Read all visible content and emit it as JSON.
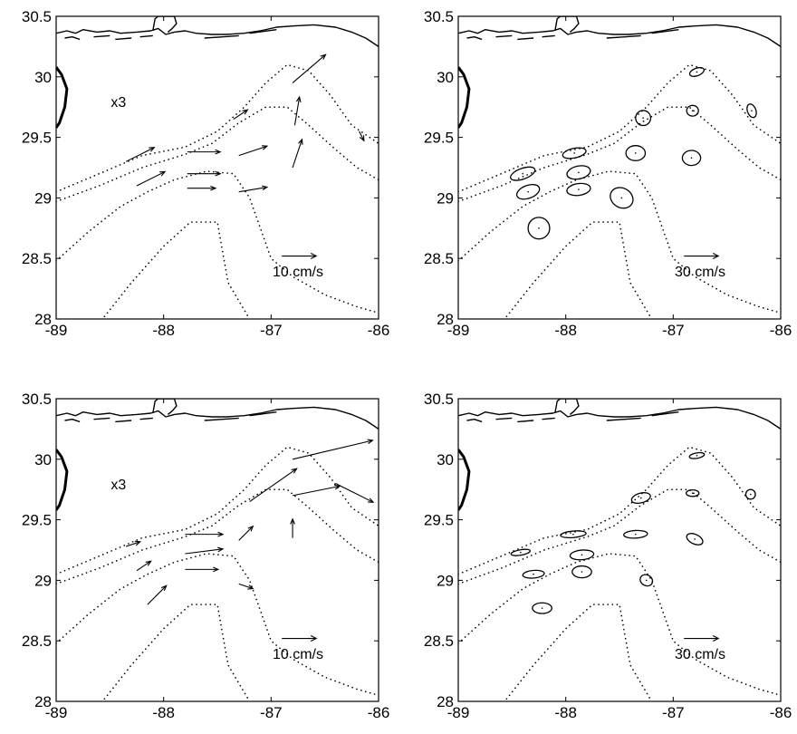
{
  "figure": {
    "panels": [
      {
        "id": "a",
        "kind": "vectors",
        "scale_label": "10 cm/s",
        "multiplier_label": "x3",
        "features": [
          {
            "lon": -88.35,
            "lat": 29.3,
            "u": 6,
            "v": 3
          },
          {
            "lon": -88.25,
            "lat": 29.1,
            "u": 6,
            "v": 3
          },
          {
            "lon": -87.78,
            "lat": 29.38,
            "u": 7,
            "v": 0
          },
          {
            "lon": -87.78,
            "lat": 29.2,
            "u": 7,
            "v": 0
          },
          {
            "lon": -87.78,
            "lat": 29.08,
            "u": 6,
            "v": 0
          },
          {
            "lon": -87.3,
            "lat": 29.05,
            "u": 6,
            "v": 1
          },
          {
            "lon": -87.3,
            "lat": 29.35,
            "u": 6,
            "v": 2
          },
          {
            "lon": -87.35,
            "lat": 29.65,
            "u": 3,
            "v": 2
          },
          {
            "lon": -86.78,
            "lat": 29.6,
            "u": 1,
            "v": 6
          },
          {
            "lon": -86.8,
            "lat": 29.25,
            "u": 2,
            "v": 6
          },
          {
            "lon": -86.8,
            "lat": 29.95,
            "u": 7,
            "v": 6
          },
          {
            "lon": -86.18,
            "lat": 29.55,
            "u": 1,
            "v": -2
          }
        ]
      },
      {
        "id": "b",
        "kind": "ellipses",
        "scale_label": "30 cm/s",
        "multiplier_label": "",
        "features": [
          {
            "lon": -88.4,
            "lat": 29.2,
            "rx": 0.12,
            "ry": 0.05,
            "angle": -20
          },
          {
            "lon": -88.35,
            "lat": 29.05,
            "rx": 0.11,
            "ry": 0.06,
            "angle": -20
          },
          {
            "lon": -88.25,
            "lat": 28.75,
            "rx": 0.1,
            "ry": 0.1,
            "angle": 0
          },
          {
            "lon": -87.92,
            "lat": 29.37,
            "rx": 0.11,
            "ry": 0.045,
            "angle": -12
          },
          {
            "lon": -87.88,
            "lat": 29.21,
            "rx": 0.11,
            "ry": 0.06,
            "angle": -12
          },
          {
            "lon": -87.88,
            "lat": 29.07,
            "rx": 0.11,
            "ry": 0.055,
            "angle": -8
          },
          {
            "lon": -87.48,
            "lat": 29.0,
            "rx": 0.11,
            "ry": 0.09,
            "angle": 30
          },
          {
            "lon": -87.35,
            "lat": 29.37,
            "rx": 0.09,
            "ry": 0.07,
            "angle": 0
          },
          {
            "lon": -87.28,
            "lat": 29.66,
            "rx": 0.07,
            "ry": 0.07,
            "angle": -40
          },
          {
            "lon": -86.82,
            "lat": 29.72,
            "rx": 0.055,
            "ry": 0.05,
            "angle": 0
          },
          {
            "lon": -86.83,
            "lat": 29.33,
            "rx": 0.085,
            "ry": 0.07,
            "angle": 0
          },
          {
            "lon": -86.78,
            "lat": 30.04,
            "rx": 0.07,
            "ry": 0.035,
            "angle": -20
          },
          {
            "lon": -86.27,
            "lat": 29.72,
            "rx": 0.04,
            "ry": 0.065,
            "angle": -20
          }
        ]
      },
      {
        "id": "c",
        "kind": "vectors",
        "scale_label": "10 cm/s",
        "multiplier_label": "x3",
        "features": [
          {
            "lon": -88.35,
            "lat": 29.28,
            "u": 3,
            "v": 1
          },
          {
            "lon": -88.25,
            "lat": 29.08,
            "u": 3,
            "v": 2
          },
          {
            "lon": -88.15,
            "lat": 28.8,
            "u": 4,
            "v": 4
          },
          {
            "lon": -87.8,
            "lat": 29.38,
            "u": 8,
            "v": 0
          },
          {
            "lon": -87.8,
            "lat": 29.22,
            "u": 8,
            "v": 1
          },
          {
            "lon": -87.8,
            "lat": 29.09,
            "u": 7,
            "v": 0
          },
          {
            "lon": -87.3,
            "lat": 28.97,
            "u": 3,
            "v": -1
          },
          {
            "lon": -87.3,
            "lat": 29.33,
            "u": 3,
            "v": 3
          },
          {
            "lon": -87.2,
            "lat": 29.65,
            "u": 10,
            "v": 7
          },
          {
            "lon": -86.8,
            "lat": 29.35,
            "u": 0,
            "v": 4
          },
          {
            "lon": -86.8,
            "lat": 29.7,
            "u": 10,
            "v": 2
          },
          {
            "lon": -86.8,
            "lat": 30.0,
            "u": 17,
            "v": 4
          },
          {
            "lon": -86.4,
            "lat": 29.8,
            "u": 8,
            "v": -4
          }
        ]
      },
      {
        "id": "d",
        "kind": "ellipses",
        "scale_label": "30 cm/s",
        "multiplier_label": "",
        "features": [
          {
            "lon": -88.42,
            "lat": 29.23,
            "rx": 0.09,
            "ry": 0.025,
            "angle": -10
          },
          {
            "lon": -88.3,
            "lat": 29.05,
            "rx": 0.1,
            "ry": 0.035,
            "angle": -5
          },
          {
            "lon": -88.22,
            "lat": 28.77,
            "rx": 0.09,
            "ry": 0.05,
            "angle": 0
          },
          {
            "lon": -87.93,
            "lat": 29.38,
            "rx": 0.12,
            "ry": 0.03,
            "angle": -5
          },
          {
            "lon": -87.85,
            "lat": 29.21,
            "rx": 0.11,
            "ry": 0.045,
            "angle": -5
          },
          {
            "lon": -87.85,
            "lat": 29.07,
            "rx": 0.09,
            "ry": 0.055,
            "angle": 0
          },
          {
            "lon": -87.25,
            "lat": 29.0,
            "rx": 0.06,
            "ry": 0.05,
            "angle": 30
          },
          {
            "lon": -87.35,
            "lat": 29.38,
            "rx": 0.11,
            "ry": 0.035,
            "angle": -3
          },
          {
            "lon": -87.3,
            "lat": 29.68,
            "rx": 0.09,
            "ry": 0.045,
            "angle": -15
          },
          {
            "lon": -86.82,
            "lat": 29.72,
            "rx": 0.06,
            "ry": 0.03,
            "angle": 0
          },
          {
            "lon": -86.8,
            "lat": 29.34,
            "rx": 0.08,
            "ry": 0.045,
            "angle": 25
          },
          {
            "lon": -86.78,
            "lat": 30.03,
            "rx": 0.07,
            "ry": 0.025,
            "angle": -10
          },
          {
            "lon": -86.28,
            "lat": 29.71,
            "rx": 0.045,
            "ry": 0.045,
            "angle": 30
          }
        ]
      }
    ],
    "lon_ticks": [
      "-89",
      "-88",
      "-87",
      "-86"
    ],
    "lat_ticks": [
      "28",
      "28.5",
      "29",
      "29.5",
      "30",
      "30.5"
    ],
    "lon_range": [
      -89,
      -86
    ],
    "lat_range": [
      28,
      30.5
    ]
  }
}
